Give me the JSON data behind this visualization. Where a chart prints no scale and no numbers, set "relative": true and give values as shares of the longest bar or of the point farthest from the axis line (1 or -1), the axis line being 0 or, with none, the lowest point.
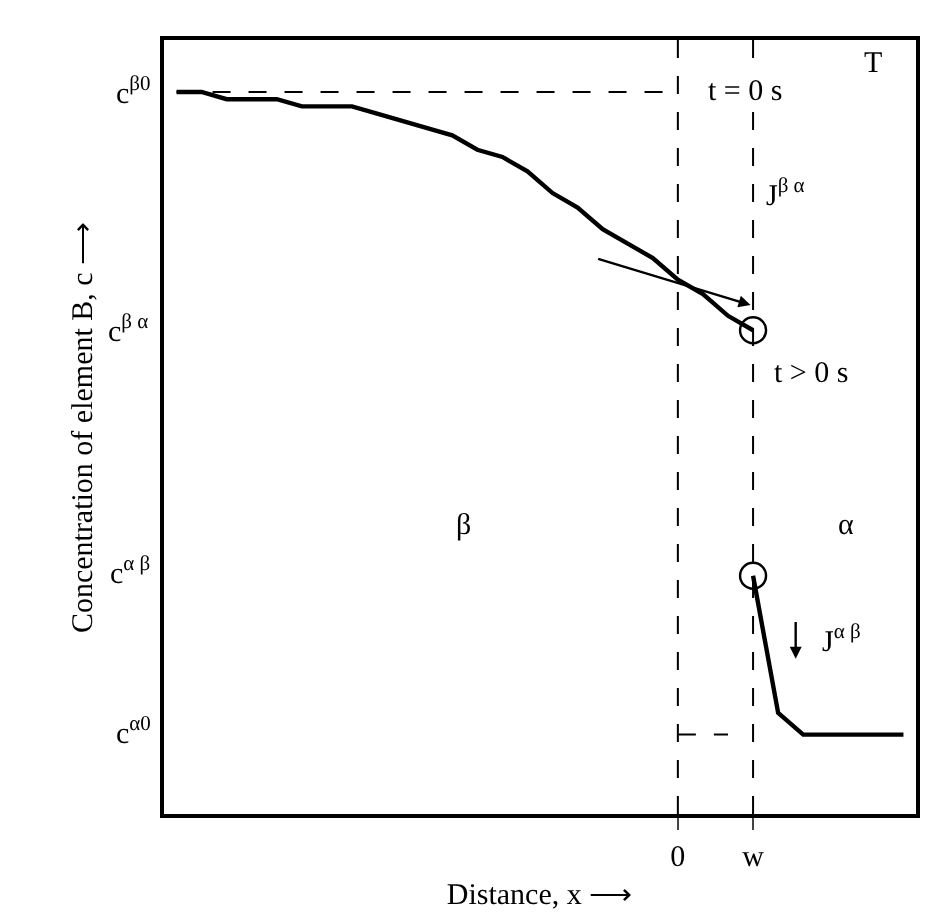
{
  "chart_data": {
    "type": "line",
    "relative": true,
    "xlabel": "Distance, x ⟶",
    "ylabel": "Concentration of element B, c ⟶",
    "categories": [
      null,
      null,
      null,
      null,
      null,
      null,
      null,
      null,
      null,
      null,
      null,
      null,
      null,
      null,
      null,
      null,
      null,
      null,
      null,
      null,
      "0",
      null,
      null,
      "w",
      null,
      null,
      null,
      null,
      null,
      null
    ],
    "tick_labels": "x",
    "grid": false,
    "series": [
      {
        "color": "#000000",
        "values": [
          1.0,
          1.0,
          0.99,
          0.99,
          0.99,
          0.98,
          0.98,
          0.98,
          0.97,
          0.96,
          0.95,
          0.94,
          0.92,
          0.91,
          0.89,
          0.86,
          0.84,
          0.81,
          0.79,
          0.77,
          0.74,
          0.72,
          0.69,
          0.67,
          null,
          null,
          null,
          null,
          null,
          null
        ]
      },
      {
        "color": "#000000",
        "values": [
          null,
          null,
          null,
          null,
          null,
          null,
          null,
          null,
          null,
          null,
          null,
          null,
          null,
          null,
          null,
          null,
          null,
          null,
          null,
          null,
          null,
          null,
          null,
          0.33,
          0.14,
          0.11,
          0.11,
          0.11,
          0.11,
          0.11
        ]
      },
      {
        "color": "#000000",
        "line_style": "dashed",
        "values": [
          1,
          1,
          1,
          1,
          1,
          1,
          1,
          1,
          1,
          1,
          1,
          1,
          1,
          1,
          1,
          1,
          1,
          1,
          1,
          1,
          1,
          null,
          null,
          null,
          null,
          null,
          null,
          null,
          null,
          null
        ]
      },
      {
        "color": "#000000",
        "line_style": "dashed",
        "values": [
          null,
          null,
          null,
          null,
          null,
          null,
          null,
          null,
          null,
          null,
          null,
          null,
          null,
          null,
          null,
          null,
          null,
          null,
          null,
          null,
          0.11,
          0.11,
          0.11,
          null,
          null,
          null,
          null,
          null,
          null,
          null
        ]
      },
      {
        "type": "scatter",
        "color": "#000000",
        "marker": "circle",
        "values": [
          null,
          null,
          null,
          null,
          null,
          null,
          null,
          null,
          null,
          null,
          null,
          null,
          null,
          null,
          null,
          null,
          null,
          null,
          null,
          null,
          null,
          null,
          null,
          0.67,
          null,
          null,
          null,
          null,
          null,
          null
        ]
      },
      {
        "type": "scatter",
        "color": "#000000",
        "marker": "circle",
        "values": [
          null,
          null,
          null,
          null,
          null,
          null,
          null,
          null,
          null,
          null,
          null,
          null,
          null,
          null,
          null,
          null,
          null,
          null,
          null,
          null,
          null,
          null,
          null,
          0.33,
          null,
          null,
          null,
          null,
          null,
          null
        ]
      }
    ],
    "ref_lines": [
      {
        "axis": "x",
        "value": "0",
        "line_style": "dashed",
        "color": "#000000"
      },
      {
        "axis": "x",
        "value": "w",
        "line_style": "dashed",
        "color": "#000000"
      }
    ],
    "annotations": [
      "c$^{β0}$",
      "c$^{β α}$",
      "c$^{α β}$",
      "c$^{α0}$",
      "T",
      "t = 0 s",
      "J$^{β α}$",
      "t > 0 s",
      "J$^{α β}$",
      "β",
      "α"
    ]
  }
}
